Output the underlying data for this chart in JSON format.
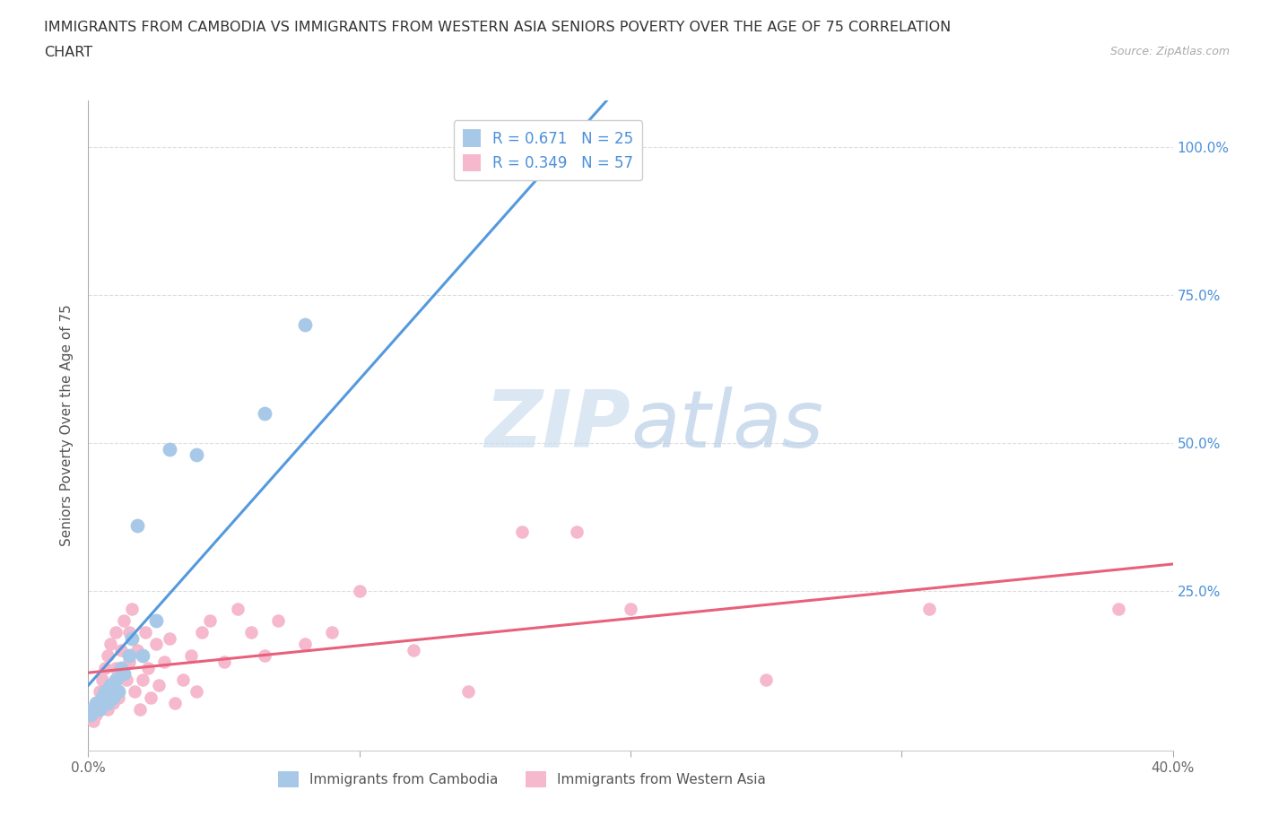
{
  "title_line1": "IMMIGRANTS FROM CAMBODIA VS IMMIGRANTS FROM WESTERN ASIA SENIORS POVERTY OVER THE AGE OF 75 CORRELATION",
  "title_line2": "CHART",
  "source": "Source: ZipAtlas.com",
  "ylabel": "Seniors Poverty Over the Age of 75",
  "xlim": [
    0.0,
    0.4
  ],
  "ylim": [
    -0.02,
    1.08
  ],
  "ytick_labels_right": [
    "100.0%",
    "75.0%",
    "50.0%",
    "25.0%"
  ],
  "ytick_vals_right": [
    1.0,
    0.75,
    0.5,
    0.25
  ],
  "cambodia_color": "#a8c8e8",
  "western_asia_color": "#f5b8cc",
  "cambodia_line_color": "#5599dd",
  "western_asia_line_color": "#e8607a",
  "r_cambodia": 0.671,
  "n_cambodia": 25,
  "r_western_asia": 0.349,
  "n_western_asia": 57,
  "background_color": "#ffffff",
  "grid_color": "#dddddd",
  "cambodia_x": [
    0.001,
    0.002,
    0.003,
    0.004,
    0.005,
    0.006,
    0.007,
    0.008,
    0.009,
    0.01,
    0.011,
    0.012,
    0.013,
    0.015,
    0.016,
    0.018,
    0.02,
    0.025,
    0.03,
    0.04,
    0.065,
    0.08,
    0.15,
    0.19,
    0.2
  ],
  "cambodia_y": [
    0.04,
    0.05,
    0.06,
    0.05,
    0.07,
    0.08,
    0.06,
    0.09,
    0.07,
    0.1,
    0.08,
    0.12,
    0.11,
    0.14,
    0.17,
    0.36,
    0.14,
    0.2,
    0.49,
    0.48,
    0.55,
    0.7,
    0.97,
    0.97,
    0.97
  ],
  "western_asia_x": [
    0.001,
    0.002,
    0.003,
    0.003,
    0.004,
    0.004,
    0.005,
    0.005,
    0.006,
    0.006,
    0.007,
    0.007,
    0.008,
    0.008,
    0.009,
    0.01,
    0.01,
    0.011,
    0.012,
    0.013,
    0.014,
    0.015,
    0.015,
    0.016,
    0.017,
    0.018,
    0.019,
    0.02,
    0.021,
    0.022,
    0.023,
    0.025,
    0.026,
    0.028,
    0.03,
    0.032,
    0.035,
    0.038,
    0.04,
    0.042,
    0.045,
    0.05,
    0.055,
    0.06,
    0.065,
    0.07,
    0.08,
    0.09,
    0.1,
    0.12,
    0.14,
    0.16,
    0.18,
    0.2,
    0.25,
    0.31,
    0.38
  ],
  "western_asia_y": [
    0.05,
    0.03,
    0.06,
    0.04,
    0.08,
    0.05,
    0.1,
    0.07,
    0.09,
    0.12,
    0.05,
    0.14,
    0.08,
    0.16,
    0.06,
    0.12,
    0.18,
    0.07,
    0.15,
    0.2,
    0.1,
    0.18,
    0.13,
    0.22,
    0.08,
    0.15,
    0.05,
    0.1,
    0.18,
    0.12,
    0.07,
    0.16,
    0.09,
    0.13,
    0.17,
    0.06,
    0.1,
    0.14,
    0.08,
    0.18,
    0.2,
    0.13,
    0.22,
    0.18,
    0.14,
    0.2,
    0.16,
    0.18,
    0.25,
    0.15,
    0.08,
    0.35,
    0.35,
    0.22,
    0.1,
    0.22,
    0.22
  ]
}
